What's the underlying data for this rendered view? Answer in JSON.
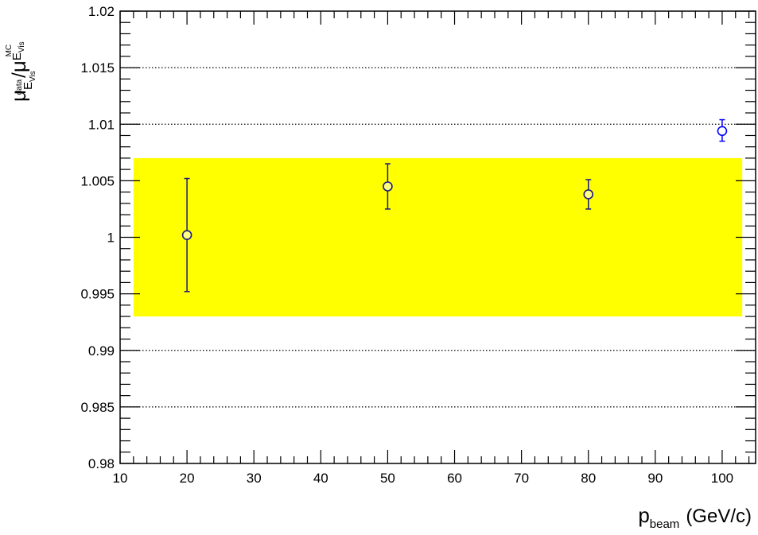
{
  "chart_data": {
    "type": "scatter",
    "title": "",
    "xlabel": {
      "main": "p",
      "sub": "beam",
      "unit": "(GeV/c)"
    },
    "ylabel": {
      "main": "μ",
      "numerator_sub": "E",
      "numerator_sub_sub": "Vis",
      "numerator_sup": "data",
      "slash": "/",
      "denominator": "μ",
      "denominator_sub": "E",
      "denominator_sub_sub": "Vis",
      "denominator_sup": "MC"
    },
    "xlim": [
      10,
      105
    ],
    "ylim": [
      0.98,
      1.02
    ],
    "x_ticks": [
      10,
      20,
      30,
      40,
      50,
      60,
      70,
      80,
      90,
      100
    ],
    "x_tick_labels": [
      "10",
      "20",
      "30",
      "40",
      "50",
      "60",
      "70",
      "80",
      "90",
      "100"
    ],
    "y_ticks": [
      0.98,
      0.985,
      0.99,
      0.995,
      1.0,
      1.005,
      1.01,
      1.015,
      1.02
    ],
    "y_tick_labels": [
      "0.98",
      "0.985",
      "0.99",
      "0.995",
      "1",
      "1.005",
      "1.01",
      "1.015",
      "1.02"
    ],
    "y_gridlines": [
      0.985,
      0.99,
      1.01,
      1.015
    ],
    "grid": "y-dotted",
    "band": {
      "x": [
        12,
        103
      ],
      "y": [
        0.993,
        1.007
      ],
      "color": "#ffff00"
    },
    "series": [
      {
        "points": [
          {
            "x": 20,
            "y": 1.0002,
            "err_low": 0.005,
            "err_high": 0.005,
            "fill": "#ffff80",
            "edge": "#1a1a80"
          },
          {
            "x": 50,
            "y": 1.0045,
            "err_low": 0.002,
            "err_high": 0.002,
            "fill": "#ffff80",
            "edge": "#1a1a80"
          },
          {
            "x": 80,
            "y": 1.0038,
            "err_low": 0.0013,
            "err_high": 0.0013,
            "fill": "#ffff80",
            "edge": "#1a1a80"
          },
          {
            "x": 100,
            "y": 1.0094,
            "err_low": 0.0009,
            "err_high": 0.001,
            "fill": "#ffffff",
            "edge": "#0000ff"
          }
        ]
      }
    ]
  }
}
